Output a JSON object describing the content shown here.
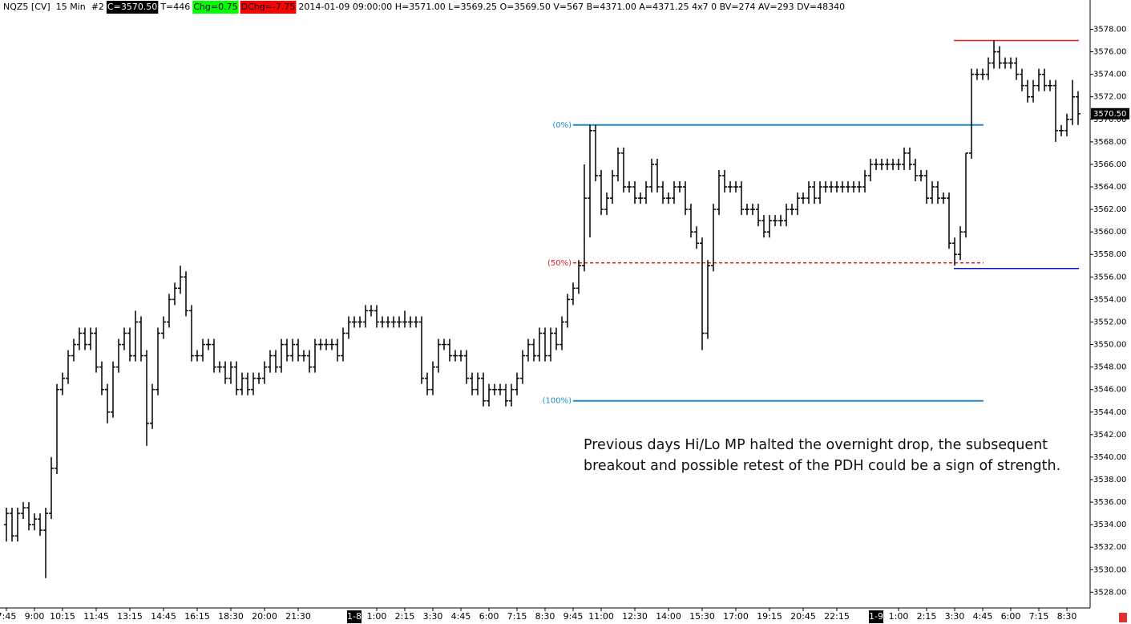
{
  "chart_data": {
    "type": "ohlc",
    "header": [
      {
        "text": "NQZ5 [CV]  15 Min  #2"
      },
      {
        "text": "C=3570.50",
        "bg": "#000000",
        "fg": "#ffffff"
      },
      {
        "text": "T=446"
      },
      {
        "text": "Chg=0.75",
        "bg": "#00ff00",
        "fg": "#000000"
      },
      {
        "text": "DChg=-7.75",
        "bg": "#ff0000",
        "fg": "#000000"
      },
      {
        "text": "2014-01-09 09:00:00 H=3571.00 L=3569.25 O=3569.50 V=567 B=4371.00 A=4371.25 4x7 0 BV=274 AV=293 DV=48340"
      }
    ],
    "open": [
      3534,
      3535,
      3533,
      3535,
      3535.5,
      3534,
      3534.5,
      3533.5,
      3535,
      3539,
      3546,
      3547,
      3549,
      3550,
      3551,
      3550,
      3551,
      3548,
      3546,
      3544,
      3548,
      3550,
      3551,
      3549,
      3552,
      3549,
      3543,
      3546,
      3551,
      3552,
      3554,
      3555,
      3556,
      3553,
      3549,
      3549,
      3550,
      3550,
      3548,
      3548,
      3547,
      3548,
      3546,
      3547,
      3546,
      3547,
      3547,
      3548,
      3549,
      3548,
      3550,
      3549,
      3550,
      3549,
      3549,
      3548,
      3550,
      3550,
      3550,
      3550,
      3549,
      3551,
      3552,
      3552,
      3552,
      3553,
      3553,
      3552,
      3552,
      3552,
      3552,
      3552,
      3552,
      3552,
      3552,
      3547,
      3546,
      3548,
      3550,
      3550,
      3549,
      3549,
      3549,
      3547,
      3546,
      3547,
      3545,
      3546,
      3546,
      3546,
      3545,
      3546,
      3547,
      3549,
      3550,
      3549,
      3551,
      3549,
      3551,
      3550,
      3552,
      3554,
      3555,
      3557,
      3563,
      3569,
      3565,
      3562,
      3563,
      3565,
      3567,
      3564,
      3564,
      3563,
      3563,
      3564,
      3566,
      3564,
      3563,
      3563,
      3564,
      3564,
      3562,
      3560,
      3559,
      3551,
      3557,
      3562,
      3565,
      3564,
      3564,
      3564,
      3562,
      3562,
      3562,
      3561,
      3560,
      3561,
      3561,
      3561,
      3562,
      3562,
      3563,
      3563,
      3564,
      3563,
      3564,
      3564,
      3564,
      3564,
      3564,
      3564,
      3564,
      3564,
      3565,
      3566,
      3566,
      3566,
      3566,
      3566,
      3566,
      3567,
      3566,
      3565,
      3565,
      3563,
      3564,
      3563,
      3563,
      3559,
      3558,
      3560,
      3567,
      3574,
      3574,
      3574,
      3575,
      3576,
      3575,
      3575,
      3575,
      3574,
      3573,
      3572,
      3573,
      3574,
      3573,
      3573,
      3569,
      3569,
      3570,
      3572
    ],
    "high": [
      3535.5,
      3535.5,
      3535.5,
      3536,
      3536,
      3535,
      3535,
      3535.5,
      3540,
      3546.5,
      3547.5,
      3549.5,
      3550.5,
      3551.5,
      3551.5,
      3551.5,
      3551.5,
      3548.5,
      3546.5,
      3548.5,
      3550.5,
      3551.5,
      3551.5,
      3553,
      3552.5,
      3549.5,
      3546.5,
      3551.5,
      3552.5,
      3554.5,
      3555.5,
      3557,
      3556.5,
      3553.5,
      3549.5,
      3550.5,
      3550.5,
      3550.5,
      3548.5,
      3548.5,
      3548.5,
      3548.5,
      3547.5,
      3547.5,
      3547.5,
      3547.5,
      3548.5,
      3549.5,
      3549.5,
      3550.5,
      3550.5,
      3550.5,
      3550.5,
      3549.5,
      3549.5,
      3550.5,
      3550.5,
      3550.5,
      3550.5,
      3550.5,
      3551.5,
      3552.5,
      3552.5,
      3552.5,
      3553.5,
      3553.5,
      3553.5,
      3552.5,
      3552.5,
      3552.5,
      3552.5,
      3553,
      3552.5,
      3552.5,
      3552.5,
      3547.5,
      3548.5,
      3550.5,
      3550.5,
      3550.5,
      3549.5,
      3549.5,
      3549.5,
      3547.5,
      3547.5,
      3547.5,
      3546.5,
      3546.5,
      3546.5,
      3546.5,
      3546.5,
      3547.5,
      3549.5,
      3550.5,
      3550.5,
      3551.5,
      3551.5,
      3551.5,
      3551.5,
      3552.5,
      3554.5,
      3555.5,
      3557.5,
      3566,
      3569.5,
      3569.5,
      3565.5,
      3563.5,
      3565.5,
      3567.5,
      3567.5,
      3564.5,
      3564.5,
      3563.5,
      3564.5,
      3566.5,
      3566.5,
      3564.5,
      3563.5,
      3564.5,
      3564.5,
      3564.5,
      3562.5,
      3560.5,
      3559.5,
      3557.5,
      3562.5,
      3565.5,
      3565.5,
      3564.5,
      3564.5,
      3564.5,
      3562.5,
      3562.5,
      3562.5,
      3561.5,
      3561.5,
      3561.5,
      3561.5,
      3562.5,
      3562.5,
      3563.5,
      3563.5,
      3564.5,
      3564.5,
      3564.5,
      3564.5,
      3564.5,
      3564.5,
      3564.5,
      3564.5,
      3564.5,
      3564.5,
      3565.5,
      3566.5,
      3566.5,
      3566.5,
      3566.5,
      3566.5,
      3566.5,
      3567.5,
      3567.5,
      3566.5,
      3565.5,
      3565.5,
      3564.5,
      3564.5,
      3563.5,
      3563.5,
      3559.5,
      3560.5,
      3567,
      3574.5,
      3574.5,
      3574.5,
      3575.5,
      3577,
      3576.5,
      3575.5,
      3575.5,
      3575.5,
      3574.5,
      3573.5,
      3573.5,
      3574.5,
      3574.5,
      3573.5,
      3573.5,
      3569.5,
      3570.5,
      3573.5,
      3572.5
    ],
    "low": [
      3532.5,
      3532.5,
      3532.5,
      3534.5,
      3533.5,
      3533.5,
      3533,
      3529.25,
      3534.5,
      3538.5,
      3545.5,
      3546.5,
      3548.5,
      3549.5,
      3549.5,
      3549.5,
      3547.5,
      3545.5,
      3543,
      3543.5,
      3547.5,
      3549.5,
      3548.5,
      3548.5,
      3548.5,
      3541,
      3542.5,
      3545.5,
      3550.5,
      3551.5,
      3553.5,
      3554.5,
      3552.5,
      3548.5,
      3548.5,
      3548.5,
      3549.5,
      3547.5,
      3547.5,
      3546.5,
      3546.5,
      3545.5,
      3545.5,
      3545.5,
      3545.5,
      3546.5,
      3546.5,
      3547.5,
      3547.5,
      3547.5,
      3548.5,
      3548.5,
      3548.5,
      3548.5,
      3547.5,
      3547.5,
      3549.5,
      3549.5,
      3549.5,
      3548.5,
      3548.5,
      3550.5,
      3551.5,
      3551.5,
      3551.5,
      3552.5,
      3551.5,
      3551.5,
      3551.5,
      3551.5,
      3551.5,
      3551.5,
      3551.5,
      3551.5,
      3546.5,
      3545.5,
      3545.5,
      3547.5,
      3549.5,
      3548.5,
      3548.5,
      3548.5,
      3546.5,
      3545.5,
      3545.5,
      3544.5,
      3544.5,
      3545.5,
      3545.5,
      3544.5,
      3544.5,
      3545.5,
      3546.5,
      3548.5,
      3548.5,
      3548.5,
      3548.5,
      3548.5,
      3549.5,
      3549.5,
      3551.5,
      3553.5,
      3554.5,
      3556.5,
      3559.5,
      3564.5,
      3561.5,
      3561.5,
      3562.5,
      3564.5,
      3563.5,
      3563.5,
      3562.5,
      3562.5,
      3562.5,
      3563.5,
      3563.5,
      3562.5,
      3562.5,
      3562.5,
      3563.5,
      3561.5,
      3559.5,
      3558.5,
      3549.5,
      3550.5,
      3556.5,
      3561.5,
      3563.5,
      3563.5,
      3563.5,
      3561.5,
      3561.5,
      3561.5,
      3560.5,
      3559.5,
      3559.5,
      3560.5,
      3560.5,
      3560.5,
      3561.5,
      3561.5,
      3562.5,
      3562.5,
      3562.5,
      3562.5,
      3563.5,
      3563.5,
      3563.5,
      3563.5,
      3563.5,
      3563.5,
      3563.5,
      3563.5,
      3564.5,
      3565.5,
      3565.5,
      3565.5,
      3565.5,
      3565.5,
      3565.5,
      3565.5,
      3564.5,
      3564.5,
      3562.5,
      3562.5,
      3562.5,
      3562.5,
      3558.5,
      3557,
      3557.5,
      3559.5,
      3566.5,
      3573.5,
      3573.5,
      3573.5,
      3574.5,
      3574.5,
      3574.5,
      3574.5,
      3573.5,
      3572.5,
      3571.5,
      3571.5,
      3572.5,
      3572.5,
      3572.5,
      3568,
      3568.5,
      3568.5,
      3569.5,
      3569.5
    ],
    "close": [
      3535,
      3533,
      3535,
      3535.5,
      3534,
      3534.5,
      3533.5,
      3535,
      3539,
      3546,
      3547,
      3549,
      3550,
      3551,
      3550,
      3551,
      3548,
      3546,
      3544,
      3548,
      3550,
      3551,
      3549,
      3552,
      3549,
      3543,
      3546,
      3551,
      3552,
      3554,
      3555,
      3556,
      3553,
      3549,
      3549,
      3550,
      3550,
      3548,
      3548,
      3547,
      3548,
      3546,
      3547,
      3546,
      3547,
      3547,
      3548,
      3549,
      3548,
      3550,
      3549,
      3550,
      3549,
      3549,
      3548,
      3550,
      3550,
      3550,
      3550,
      3549,
      3551,
      3552,
      3552,
      3552,
      3553,
      3553,
      3552,
      3552,
      3552,
      3552,
      3552,
      3552,
      3552,
      3552,
      3547,
      3546,
      3548,
      3550,
      3550,
      3549,
      3549,
      3549,
      3547,
      3546,
      3547,
      3545,
      3546,
      3546,
      3546,
      3545,
      3546,
      3547,
      3549,
      3550,
      3549,
      3551,
      3549,
      3551,
      3550,
      3552,
      3554,
      3555,
      3557,
      3563,
      3569,
      3565,
      3562,
      3563,
      3565,
      3567,
      3564,
      3564,
      3563,
      3563,
      3564,
      3566,
      3564,
      3563,
      3563,
      3564,
      3564,
      3562,
      3560,
      3559,
      3551,
      3557,
      3562,
      3565,
      3564,
      3564,
      3564,
      3562,
      3562,
      3562,
      3561,
      3560,
      3561,
      3561,
      3561,
      3562,
      3562,
      3563,
      3563,
      3564,
      3563,
      3564,
      3564,
      3564,
      3564,
      3564,
      3564,
      3564,
      3564,
      3565,
      3566,
      3566,
      3566,
      3566,
      3566,
      3566,
      3567,
      3566,
      3565,
      3565,
      3563,
      3564,
      3563,
      3563,
      3559,
      3558,
      3560,
      3567,
      3574,
      3574,
      3574,
      3575,
      3576,
      3575,
      3575,
      3575,
      3574,
      3573,
      3572,
      3573,
      3574,
      3573,
      3573,
      3569,
      3569,
      3570,
      3572,
      3570.5
    ],
    "color": "#000000",
    "ylim": [
      3526.6,
      3580.6
    ],
    "yticks": [
      {
        "value": 3528,
        "label": "3528.00"
      },
      {
        "value": 3530,
        "label": "3530.00"
      },
      {
        "value": 3532,
        "label": "3532.00"
      },
      {
        "value": 3534,
        "label": "3534.00"
      },
      {
        "value": 3536,
        "label": "3536.00"
      },
      {
        "value": 3538,
        "label": "3538.00"
      },
      {
        "value": 3540,
        "label": "3540.00"
      },
      {
        "value": 3542,
        "label": "3542.00"
      },
      {
        "value": 3544,
        "label": "3544.00"
      },
      {
        "value": 3546,
        "label": "3546.00"
      },
      {
        "value": 3548,
        "label": "3548.00"
      },
      {
        "value": 3550,
        "label": "3550.00"
      },
      {
        "value": 3552,
        "label": "3552.00"
      },
      {
        "value": 3554,
        "label": "3554.00"
      },
      {
        "value": 3556,
        "label": "3556.00"
      },
      {
        "value": 3558,
        "label": "3558.00"
      },
      {
        "value": 3560,
        "label": "3560.00"
      },
      {
        "value": 3562,
        "label": "3562.00"
      },
      {
        "value": 3564,
        "label": "3564.00"
      },
      {
        "value": 3566,
        "label": "3566.00"
      },
      {
        "value": 3568,
        "label": "3568.00"
      },
      {
        "value": 3570,
        "label": "3570.00"
      },
      {
        "value": 3572,
        "label": "3572.00"
      },
      {
        "value": 3574,
        "label": "3574.00"
      },
      {
        "value": 3576,
        "label": "3576.00"
      },
      {
        "value": 3578,
        "label": "3578.00"
      }
    ],
    "xticks": [
      {
        "value": 0,
        "label": "7:45"
      },
      {
        "value": 5,
        "label": "9:00"
      },
      {
        "value": 10,
        "label": "10:15"
      },
      {
        "value": 16,
        "label": "11:45"
      },
      {
        "value": 22,
        "label": "13:15"
      },
      {
        "value": 28,
        "label": "14:45"
      },
      {
        "value": 34,
        "label": "16:15"
      },
      {
        "value": 40,
        "label": "18:30"
      },
      {
        "value": 46,
        "label": "20:00"
      },
      {
        "value": 52,
        "label": "21:30"
      },
      {
        "value": 66,
        "label": "1:00"
      },
      {
        "value": 71,
        "label": "2:15"
      },
      {
        "value": 76,
        "label": "3:30"
      },
      {
        "value": 81,
        "label": "4:45"
      },
      {
        "value": 86,
        "label": "6:00"
      },
      {
        "value": 91,
        "label": "7:15"
      },
      {
        "value": 96,
        "label": "8:30"
      },
      {
        "value": 101,
        "label": "9:45"
      },
      {
        "value": 106,
        "label": "11:00"
      },
      {
        "value": 112,
        "label": "12:30"
      },
      {
        "value": 118,
        "label": "14:00"
      },
      {
        "value": 124,
        "label": "15:30"
      },
      {
        "value": 130,
        "label": "17:00"
      },
      {
        "value": 136,
        "label": "19:15"
      },
      {
        "value": 142,
        "label": "20:45"
      },
      {
        "value": 148,
        "label": "22:15"
      },
      {
        "value": 159,
        "label": "1:00"
      },
      {
        "value": 164,
        "label": "2:15"
      },
      {
        "value": 169,
        "label": "3:30"
      },
      {
        "value": 174,
        "label": "4:45"
      },
      {
        "value": 179,
        "label": "6:00"
      },
      {
        "value": 184,
        "label": "7:15"
      },
      {
        "value": 189,
        "label": "8:30"
      }
    ],
    "date_markers": [
      {
        "value": 62,
        "label": "1-8"
      },
      {
        "value": 155,
        "label": "1-9"
      }
    ],
    "fib_levels": [
      {
        "label": "(0%)",
        "value": 3569.5,
        "color": "#1f8bc8",
        "dashed": false
      },
      {
        "label": "(50%)",
        "value": 3557.25,
        "color": "#e02020",
        "dashed": true
      },
      {
        "label": "(100%)",
        "value": 3545,
        "color": "#1f8bc8",
        "dashed": false
      }
    ],
    "hlines": [
      {
        "value": 3577,
        "color": "#e02020"
      },
      {
        "value": 3556.75,
        "color": "#1010c0"
      }
    ],
    "last_price": {
      "value": 3570.5,
      "label": "3570.50"
    },
    "annotation": [
      "Previous days Hi/Lo MP halted the overnight drop, the subsequent",
      "breakout and possible retest of the PDH could be a sign of strength."
    ]
  }
}
